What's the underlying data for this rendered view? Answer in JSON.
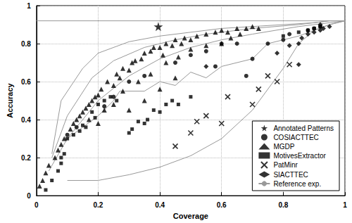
{
  "chart_data": {
    "type": "scatter",
    "xlabel": "Coverage",
    "ylabel": "Accuracy",
    "xlim": [
      0,
      1
    ],
    "ylim": [
      0,
      1
    ],
    "xticks": [
      0,
      0.2,
      0.4,
      0.6,
      0.8,
      1
    ],
    "yticks": [
      0,
      0.2,
      0.4,
      0.6,
      0.8,
      1
    ],
    "grid": true,
    "legend": "lower right",
    "series": [
      {
        "name": "Annotated Patterns",
        "type": "scatter",
        "marker": "star",
        "color": "#000000",
        "x": [
          0.395
        ],
        "values": [
          0.89
        ]
      },
      {
        "name": "COSIACTTEC",
        "type": "scatter",
        "marker": "circle",
        "color": "#000000",
        "x": [
          0.1,
          0.13,
          0.22,
          0.25,
          0.3,
          0.35,
          0.45,
          0.5,
          0.55,
          0.58,
          0.6,
          0.65,
          0.68,
          0.7,
          0.75,
          0.8,
          0.82,
          0.88,
          0.92,
          0.9
        ],
        "values": [
          0.32,
          0.36,
          0.47,
          0.52,
          0.6,
          0.63,
          0.7,
          0.74,
          0.76,
          0.68,
          0.8,
          0.8,
          0.63,
          0.72,
          0.8,
          0.82,
          0.85,
          0.87,
          0.89,
          0.88
        ]
      },
      {
        "name": "MGDP",
        "type": "scatter",
        "marker": "triangle",
        "color": "#000000",
        "x": [
          0.01,
          0.02,
          0.03,
          0.04,
          0.06,
          0.07,
          0.08,
          0.09,
          0.11,
          0.12,
          0.13,
          0.14,
          0.15,
          0.16,
          0.17,
          0.18,
          0.19,
          0.2,
          0.21,
          0.23,
          0.25,
          0.26,
          0.27,
          0.28,
          0.3,
          0.31,
          0.32,
          0.34,
          0.35,
          0.37,
          0.38,
          0.4,
          0.41,
          0.42,
          0.44,
          0.45,
          0.47,
          0.48,
          0.5,
          0.52,
          0.55,
          0.58,
          0.6,
          0.62,
          0.65,
          0.68,
          0.7,
          0.72,
          0.37,
          0.33,
          0.28,
          0.22,
          0.17,
          0.2,
          0.25,
          0.42,
          0.46,
          0.5,
          0.55,
          0.6,
          0.63,
          0.66,
          0.3,
          0.35,
          0.4,
          0.45
        ],
        "values": [
          0.05,
          0.08,
          0.12,
          0.16,
          0.2,
          0.24,
          0.27,
          0.3,
          0.35,
          0.38,
          0.4,
          0.42,
          0.44,
          0.46,
          0.48,
          0.5,
          0.52,
          0.53,
          0.56,
          0.6,
          0.58,
          0.64,
          0.62,
          0.67,
          0.66,
          0.7,
          0.71,
          0.72,
          0.75,
          0.76,
          0.78,
          0.78,
          0.74,
          0.8,
          0.79,
          0.82,
          0.8,
          0.83,
          0.82,
          0.84,
          0.85,
          0.86,
          0.87,
          0.86,
          0.88,
          0.88,
          0.89,
          0.88,
          0.64,
          0.6,
          0.55,
          0.45,
          0.4,
          0.38,
          0.48,
          0.7,
          0.73,
          0.77,
          0.79,
          0.8,
          0.83,
          0.85,
          0.45,
          0.5,
          0.56,
          0.62
        ]
      },
      {
        "name": "MotivesExtractor",
        "type": "scatter",
        "marker": "square",
        "color": "#000000",
        "x": [
          0.03,
          0.05,
          0.07,
          0.08,
          0.08,
          0.09,
          0.1,
          0.12,
          0.14,
          0.15,
          0.16,
          0.18,
          0.19,
          0.2,
          0.22,
          0.24,
          0.26,
          0.3,
          0.31,
          0.35,
          0.36,
          0.38,
          0.4,
          0.42,
          0.44,
          0.46,
          0.5,
          0.33,
          0.8,
          0.85,
          0.88,
          0.9,
          0.92
        ],
        "values": [
          0.03,
          0.08,
          0.13,
          0.17,
          0.2,
          0.22,
          0.3,
          0.32,
          0.34,
          0.37,
          0.36,
          0.44,
          0.41,
          0.48,
          0.5,
          0.52,
          0.5,
          0.33,
          0.35,
          0.38,
          0.4,
          0.45,
          0.44,
          0.48,
          0.5,
          0.48,
          0.52,
          0.39,
          0.84,
          0.86,
          0.87,
          0.88,
          0.89
        ]
      },
      {
        "name": "PatMinr",
        "type": "scatter",
        "marker": "x",
        "color": "#000000",
        "x": [
          0.45,
          0.5,
          0.52,
          0.55,
          0.6,
          0.62,
          0.7,
          0.72,
          0.75,
          0.78,
          0.82
        ],
        "values": [
          0.26,
          0.33,
          0.39,
          0.42,
          0.38,
          0.52,
          0.48,
          0.56,
          0.63,
          0.6,
          0.69
        ]
      },
      {
        "name": "SIACTTEC",
        "type": "scatter",
        "marker": "diamond",
        "color": "#000000",
        "x": [
          0.55,
          0.78,
          0.82,
          0.85,
          0.86,
          0.88,
          0.9,
          0.92,
          0.93,
          0.92,
          0.85,
          0.95
        ],
        "values": [
          0.68,
          0.75,
          0.79,
          0.8,
          0.83,
          0.85,
          0.86,
          0.87,
          0.88,
          0.9,
          0.69,
          0.89
        ]
      },
      {
        "name": "Reference exp.",
        "type": "line",
        "line_style": "solid",
        "color": "#999999",
        "x": [
          0,
          1
        ],
        "values": [
          0.92,
          0.92
        ]
      },
      {
        "name": "Reference exp.",
        "type": "line",
        "line_style": "solid",
        "color": "#999999",
        "x": [
          0.05,
          0.08,
          0.15,
          0.2,
          0.3,
          0.4,
          0.5,
          0.6,
          0.7,
          0.8,
          0.9,
          0.95,
          1
        ],
        "values": [
          0.22,
          0.5,
          0.67,
          0.75,
          0.81,
          0.84,
          0.86,
          0.88,
          0.89,
          0.9,
          0.91,
          0.92,
          0.92
        ]
      },
      {
        "name": "Reference exp.",
        "type": "line",
        "line_style": "solid",
        "color": "#999999",
        "x": [
          0.05,
          0.1,
          0.18,
          0.25,
          0.35,
          0.45,
          0.55,
          0.7,
          0.85,
          0.95,
          1
        ],
        "values": [
          0.2,
          0.42,
          0.62,
          0.71,
          0.78,
          0.82,
          0.85,
          0.88,
          0.9,
          0.92,
          0.92
        ]
      },
      {
        "name": "Reference exp.",
        "type": "line",
        "line_style": "solid",
        "color": "#999999",
        "x": [
          0.04,
          0.1,
          0.2,
          0.3,
          0.4,
          0.5,
          0.6,
          0.7,
          0.85,
          0.95,
          1
        ],
        "values": [
          0.13,
          0.3,
          0.5,
          0.63,
          0.72,
          0.78,
          0.82,
          0.85,
          0.89,
          0.91,
          0.92
        ]
      },
      {
        "name": "Reference exp.",
        "type": "line",
        "line_style": "solid",
        "color": "#999999",
        "x": [
          0.1,
          0.2,
          0.25,
          0.27,
          0.35,
          0.4,
          0.45,
          0.5,
          0.55,
          0.6,
          0.7,
          0.75,
          0.8,
          0.85,
          0.9,
          0.95,
          1
        ],
        "values": [
          0.3,
          0.42,
          0.5,
          0.55,
          0.55,
          0.6,
          0.58,
          0.65,
          0.62,
          0.68,
          0.72,
          0.8,
          0.82,
          0.84,
          0.87,
          0.9,
          0.92
        ]
      },
      {
        "name": "Reference exp.",
        "type": "line",
        "line_style": "solid",
        "color": "#999999",
        "x": [
          0.1,
          0.2,
          0.3,
          0.4,
          0.5,
          0.6,
          0.7,
          0.8,
          0.85,
          0.9,
          0.95,
          1
        ],
        "values": [
          0.08,
          0.08,
          0.11,
          0.15,
          0.21,
          0.3,
          0.45,
          0.67,
          0.8,
          0.87,
          0.9,
          0.92
        ]
      }
    ]
  }
}
